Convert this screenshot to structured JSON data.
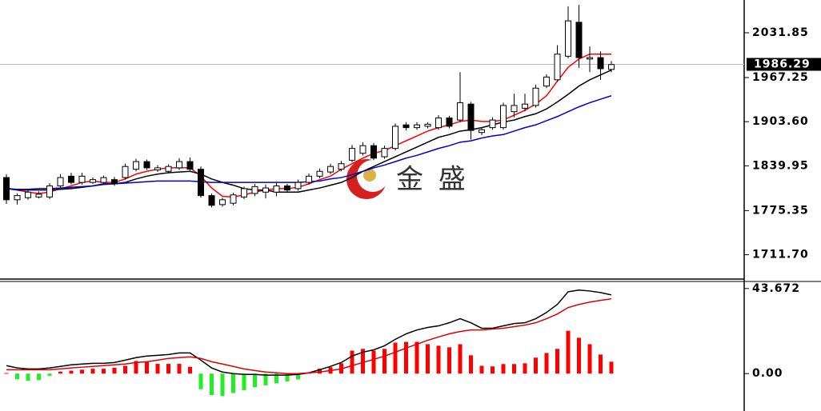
{
  "chart_data": [
    {
      "type": "candlestick",
      "watermark": "金 盛",
      "open": [
        1823,
        1791,
        1794,
        1795,
        1795,
        1811,
        1825,
        1816,
        1816,
        1816,
        1820,
        1823,
        1835,
        1846,
        1834,
        1832,
        1837,
        1846,
        1835,
        1797,
        1784,
        1786,
        1795,
        1800,
        1802,
        1802,
        1811,
        1807,
        1816,
        1825,
        1831,
        1835,
        1848,
        1858,
        1869,
        1853,
        1865,
        1899,
        1895,
        1897,
        1895,
        1909,
        1906,
        1929,
        1888,
        1895,
        1895,
        1918,
        1923,
        1927,
        1955,
        1964,
        1998,
        2047,
        1994,
        1996,
        1979
      ],
      "high": [
        1828,
        1800,
        1806,
        1803,
        1815,
        1828,
        1830,
        1830,
        1823,
        1826,
        1824,
        1843,
        1850,
        1849,
        1841,
        1842,
        1851,
        1852,
        1839,
        1800,
        1794,
        1801,
        1810,
        1814,
        1813,
        1815,
        1814,
        1820,
        1829,
        1836,
        1843,
        1847,
        1870,
        1874,
        1873,
        1869,
        1901,
        1903,
        1903,
        1903,
        1913,
        1912,
        1975,
        1932,
        1895,
        1910,
        1931,
        1944,
        1944,
        1957,
        1972,
        2014,
        2070,
        2072,
        2012,
        2005,
        1991
      ],
      "low": [
        1785,
        1784,
        1791,
        1793,
        1792,
        1808,
        1813,
        1813,
        1814,
        1813,
        1811,
        1820,
        1832,
        1834,
        1831,
        1829,
        1834,
        1832,
        1794,
        1780,
        1781,
        1783,
        1792,
        1796,
        1793,
        1796,
        1801,
        1804,
        1813,
        1822,
        1828,
        1832,
        1845,
        1855,
        1848,
        1850,
        1862,
        1891,
        1892,
        1894,
        1892,
        1894,
        1903,
        1878,
        1884,
        1892,
        1892,
        1910,
        1919,
        1924,
        1952,
        1961,
        1995,
        1981,
        1975,
        1964,
        1975
      ],
      "close": [
        1791,
        1797,
        1802,
        1799,
        1811,
        1823,
        1816,
        1825,
        1820,
        1823,
        1814,
        1839,
        1846,
        1837,
        1837,
        1839,
        1846,
        1835,
        1797,
        1783,
        1791,
        1798,
        1807,
        1810,
        1808,
        1811,
        1805,
        1816,
        1825,
        1832,
        1839,
        1843,
        1865,
        1869,
        1851,
        1865,
        1897,
        1895,
        1899,
        1900,
        1909,
        1897,
        1931,
        1891,
        1892,
        1906,
        1927,
        1927,
        1929,
        1952,
        1968,
        2001,
        2049,
        1996,
        1996,
        1980,
        1986
      ],
      "series": [
        {
          "color": "#ff0000",
          "values": [
            1808,
            1805,
            1802,
            1800,
            1802,
            1807,
            1811,
            1816,
            1818,
            1816,
            1816,
            1821,
            1828,
            1832,
            1835,
            1837,
            1837,
            1837,
            1825,
            1808,
            1796,
            1795,
            1798,
            1802,
            1805,
            1807,
            1807,
            1809,
            1814,
            1820,
            1825,
            1835,
            1843,
            1851,
            1858,
            1862,
            1869,
            1876,
            1883,
            1890,
            1895,
            1899,
            1904,
            1906,
            1904,
            1904,
            1906,
            1913,
            1920,
            1929,
            1941,
            1962,
            1982,
            1994,
            2001,
            2001,
            2001
          ]
        },
        {
          "color": "#000000",
          "values": [
            1807,
            1805,
            1805,
            1805,
            1805,
            1806,
            1807,
            1809,
            1811,
            1814,
            1814,
            1816,
            1821,
            1825,
            1828,
            1830,
            1831,
            1832,
            1828,
            1821,
            1816,
            1812,
            1807,
            1805,
            1805,
            1802,
            1802,
            1802,
            1805,
            1808,
            1812,
            1816,
            1823,
            1832,
            1839,
            1846,
            1853,
            1860,
            1867,
            1874,
            1881,
            1885,
            1890,
            1892,
            1895,
            1899,
            1903,
            1906,
            1911,
            1915,
            1922,
            1932,
            1943,
            1955,
            1964,
            1971,
            1978
          ]
        },
        {
          "color": "#0000cc",
          "values": [
            1807,
            1806,
            1806,
            1807,
            1807,
            1808,
            1809,
            1810,
            1811,
            1813,
            1814,
            1815,
            1816,
            1817,
            1818,
            1818,
            1818,
            1818,
            1817,
            1816,
            1816,
            1816,
            1816,
            1816,
            1816,
            1816,
            1816,
            1816,
            1817,
            1818,
            1821,
            1823,
            1827,
            1832,
            1837,
            1841,
            1846,
            1851,
            1855,
            1860,
            1865,
            1869,
            1874,
            1876,
            1880,
            1883,
            1885,
            1890,
            1895,
            1899,
            1905,
            1911,
            1918,
            1925,
            1931,
            1936,
            1941
          ]
        }
      ],
      "last_price": 1986.29,
      "ylim": [
        1676.6,
        2079.1
      ],
      "yticks": [
        {
          "value": 1711.7,
          "label": "1711.70"
        },
        1775.35,
        1839.95,
        {
          "value": 1903.6,
          "label": "1903.60"
        },
        1967.25,
        2031.85
      ]
    },
    {
      "type": "macd",
      "histogram": [
        0.3,
        -2.9,
        -3.7,
        -3.3,
        -1.2,
        1.0,
        1.5,
        2.0,
        2.5,
        2.5,
        3.0,
        4.0,
        6.5,
        6.0,
        5.0,
        5.0,
        5.0,
        3.5,
        -8,
        -11,
        -11.5,
        -10,
        -8.5,
        -7,
        -6,
        -5,
        -4,
        -3,
        0.5,
        2.5,
        3.3,
        5.3,
        11.8,
        12.7,
        11.8,
        12.7,
        15.9,
        16.3,
        16.3,
        15.1,
        14.3,
        13.5,
        15.1,
        9.4,
        4,
        3.7,
        4.9,
        4.9,
        5.3,
        8.2,
        10.6,
        12.7,
        22,
        18.4,
        15.1,
        9.8,
        6.1
      ],
      "up_color": "#ff0000",
      "down_color": "#22ee22",
      "series": [
        {
          "color": "#000000",
          "values": [
            4.1,
            2.9,
            2.4,
            2.4,
            2.9,
            3.7,
            4.5,
            4.9,
            5.3,
            5.3,
            5.7,
            6.9,
            8.2,
            9.0,
            9.4,
            9.8,
            10.6,
            10.6,
            6.9,
            2.9,
            0.8,
            0,
            -0.4,
            -0.4,
            -0.8,
            -0.8,
            -0.8,
            -0.4,
            0.4,
            2.0,
            3.7,
            5.7,
            9.0,
            11.0,
            12.2,
            14.3,
            17.6,
            20.4,
            22.4,
            23.7,
            24.5,
            26.1,
            28.2,
            26.1,
            23.3,
            23.3,
            24.5,
            25.7,
            26.1,
            28.2,
            31.4,
            35.5,
            42.0,
            42.9,
            42.4,
            41.6,
            40.4
          ]
        },
        {
          "color": "#dd0000",
          "values": [
            2.0,
            2.0,
            2.0,
            2.0,
            2.0,
            2.4,
            2.9,
            3.3,
            3.7,
            4.1,
            4.5,
            4.9,
            5.7,
            6.1,
            6.9,
            7.8,
            8.2,
            8.6,
            7.8,
            6.1,
            4.9,
            3.7,
            2.4,
            1.6,
            0.8,
            0.4,
            0,
            0,
            0.4,
            0.8,
            1.6,
            2.4,
            4.1,
            5.7,
            7.3,
            9.0,
            11.0,
            13.1,
            15.1,
            17.1,
            18.8,
            20.4,
            21.6,
            22.4,
            22.4,
            22.9,
            23.3,
            24.1,
            24.9,
            26.1,
            28.2,
            30.6,
            33.9,
            35.5,
            36.7,
            37.6,
            38.4
          ]
        }
      ],
      "ylim": [
        -19.2,
        47.3
      ],
      "yticks": [
        {
          "value": 0,
          "label": "0.00"
        },
        43.672
      ]
    }
  ]
}
